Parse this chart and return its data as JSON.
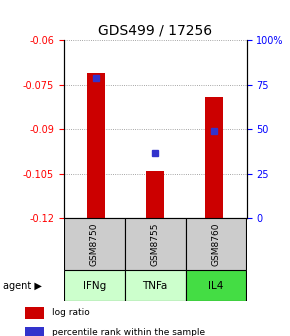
{
  "title": "GDS499 / 17256",
  "samples": [
    "GSM8750",
    "GSM8755",
    "GSM8760"
  ],
  "agents": [
    "IFNg",
    "TNFa",
    "IL4"
  ],
  "log_ratios": [
    -0.071,
    -0.104,
    -0.079
  ],
  "percentile_ranks": [
    79,
    37,
    49
  ],
  "ylim": [
    -0.12,
    -0.06
  ],
  "yticks_left": [
    -0.12,
    -0.105,
    -0.09,
    -0.075,
    -0.06
  ],
  "ytick_labels_left": [
    "-0.12",
    "-0.105",
    "-0.09",
    "-0.075",
    "-0.06"
  ],
  "yticks_right_pct": [
    0,
    25,
    50,
    75,
    100
  ],
  "ytick_labels_right": [
    "0",
    "25",
    "50",
    "75",
    "100%"
  ],
  "bar_color": "#cc0000",
  "dot_color": "#3333cc",
  "sample_bg": "#cccccc",
  "agent_colors": [
    "#ccffcc",
    "#ccffcc",
    "#44dd44"
  ],
  "grid_color": "#888888",
  "title_fontsize": 10,
  "tick_fontsize": 7,
  "bar_width": 0.3
}
